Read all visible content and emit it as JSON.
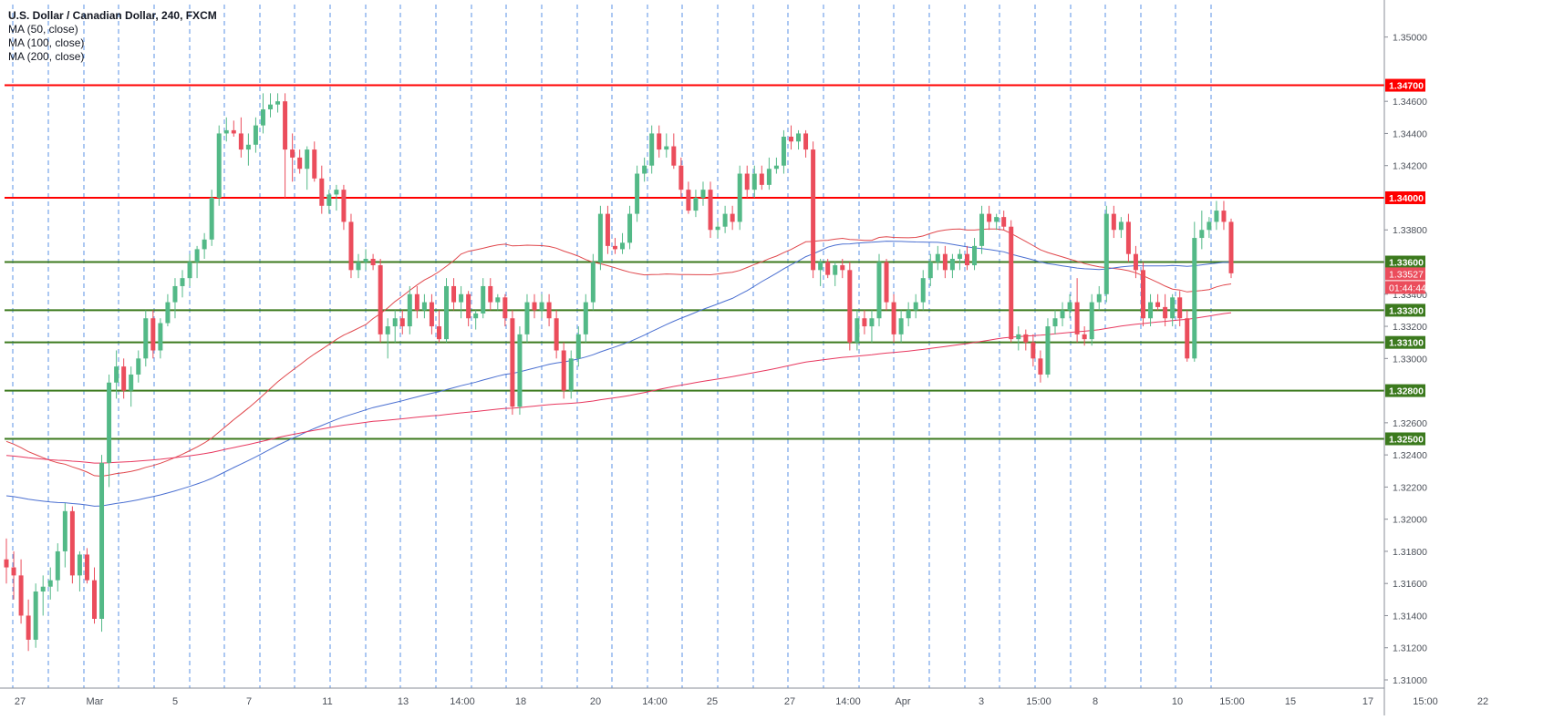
{
  "legend": {
    "title": "U.S. Dollar / Canadian Dollar, 240, FXCM",
    "ma50": "MA (50, close)",
    "ma100": "MA (100, close)",
    "ma200": "MA (200, close)"
  },
  "price_badge": {
    "last": "1.33527",
    "countdown": "01:44:44"
  },
  "colors": {
    "up": "#53b987",
    "down": "#eb4d5c",
    "ma50": "#e0474c",
    "ma100": "#4a6fd1",
    "ma200": "#e8385f",
    "resistance": "#ff0000",
    "support": "#3c7a1e",
    "session_line": "#3d7fe0"
  },
  "chart_data": {
    "type": "candlestick",
    "symbol": "U.S. Dollar / Canadian Dollar",
    "timeframe": "240",
    "source": "FXCM",
    "ylim": [
      1.31,
      1.351
    ],
    "y_ticks": [
      "1.35000",
      "1.34600",
      "1.34400",
      "1.34200",
      "1.33800",
      "1.33400",
      "1.33200",
      "1.33000",
      "1.32600",
      "1.32400",
      "1.32200",
      "1.32000",
      "1.31800",
      "1.31600",
      "1.31400",
      "1.31200",
      "1.31000"
    ],
    "x_ticks": [
      "27",
      "Mar",
      "5",
      "7",
      "11",
      "13",
      "14:00",
      "18",
      "20",
      "14:00",
      "25",
      "27",
      "14:00",
      "Apr",
      "3",
      "15:00",
      "8",
      "10",
      "15:00",
      "15",
      "17",
      "15:00",
      "22"
    ],
    "horizontal_levels": [
      {
        "value": 1.347,
        "label": "1.34700",
        "kind": "resistance"
      },
      {
        "value": 1.34,
        "label": "1.34000",
        "kind": "resistance"
      },
      {
        "value": 1.336,
        "label": "1.33600",
        "kind": "support"
      },
      {
        "value": 1.333,
        "label": "1.33300",
        "kind": "support"
      },
      {
        "value": 1.331,
        "label": "1.33100",
        "kind": "support"
      },
      {
        "value": 1.328,
        "label": "1.32800",
        "kind": "support"
      },
      {
        "value": 1.325,
        "label": "1.32500",
        "kind": "support"
      }
    ],
    "candles": [
      [
        1.3175,
        1.3188,
        1.316,
        1.317
      ],
      [
        1.317,
        1.318,
        1.315,
        1.3165
      ],
      [
        1.3165,
        1.3175,
        1.3135,
        1.314
      ],
      [
        1.314,
        1.315,
        1.3118,
        1.3125
      ],
      [
        1.3125,
        1.316,
        1.312,
        1.3155
      ],
      [
        1.3155,
        1.3165,
        1.314,
        1.3158
      ],
      [
        1.3158,
        1.317,
        1.315,
        1.3162
      ],
      [
        1.3162,
        1.3185,
        1.3155,
        1.318
      ],
      [
        1.318,
        1.321,
        1.317,
        1.3205
      ],
      [
        1.3205,
        1.3208,
        1.316,
        1.3165
      ],
      [
        1.3165,
        1.318,
        1.3155,
        1.3178
      ],
      [
        1.3178,
        1.3182,
        1.316,
        1.3162
      ],
      [
        1.3162,
        1.317,
        1.3135,
        1.3138
      ],
      [
        1.3138,
        1.324,
        1.313,
        1.3235
      ],
      [
        1.3235,
        1.329,
        1.322,
        1.3285
      ],
      [
        1.3285,
        1.3305,
        1.3275,
        1.3295
      ],
      [
        1.3295,
        1.33,
        1.3275,
        1.328
      ],
      [
        1.328,
        1.3295,
        1.327,
        1.329
      ],
      [
        1.329,
        1.3305,
        1.3285,
        1.33
      ],
      [
        1.33,
        1.333,
        1.3295,
        1.3325
      ],
      [
        1.3325,
        1.333,
        1.33,
        1.3305
      ],
      [
        1.3305,
        1.3325,
        1.33,
        1.3322
      ],
      [
        1.3322,
        1.334,
        1.332,
        1.3335
      ],
      [
        1.3335,
        1.335,
        1.3325,
        1.3345
      ],
      [
        1.3345,
        1.3355,
        1.3338,
        1.335
      ],
      [
        1.335,
        1.3365,
        1.3345,
        1.336
      ],
      [
        1.336,
        1.337,
        1.335,
        1.3368
      ],
      [
        1.3368,
        1.3378,
        1.3362,
        1.3374
      ],
      [
        1.3374,
        1.3405,
        1.337,
        1.34
      ],
      [
        1.34,
        1.3445,
        1.3395,
        1.344
      ],
      [
        1.344,
        1.345,
        1.3435,
        1.3442
      ],
      [
        1.3442,
        1.3448,
        1.3438,
        1.344
      ],
      [
        1.344,
        1.345,
        1.3425,
        1.343
      ],
      [
        1.343,
        1.344,
        1.342,
        1.3433
      ],
      [
        1.3433,
        1.345,
        1.3428,
        1.3445
      ],
      [
        1.3445,
        1.3465,
        1.344,
        1.3455
      ],
      [
        1.3455,
        1.3465,
        1.345,
        1.3458
      ],
      [
        1.3458,
        1.3465,
        1.3453,
        1.346
      ],
      [
        1.346,
        1.3465,
        1.34,
        1.343
      ],
      [
        1.343,
        1.344,
        1.341,
        1.3425
      ],
      [
        1.3425,
        1.343,
        1.3415,
        1.3418
      ],
      [
        1.3418,
        1.3432,
        1.3405,
        1.343
      ],
      [
        1.343,
        1.3435,
        1.341,
        1.3412
      ],
      [
        1.3412,
        1.342,
        1.339,
        1.3395
      ],
      [
        1.3395,
        1.3405,
        1.339,
        1.3402
      ],
      [
        1.3402,
        1.3408,
        1.3392,
        1.3405
      ],
      [
        1.3405,
        1.3408,
        1.338,
        1.3385
      ],
      [
        1.3385,
        1.339,
        1.335,
        1.3355
      ],
      [
        1.3355,
        1.3365,
        1.335,
        1.336
      ],
      [
        1.336,
        1.3368,
        1.3355,
        1.3362
      ],
      [
        1.3362,
        1.3365,
        1.3355,
        1.3358
      ],
      [
        1.3358,
        1.3362,
        1.331,
        1.3315
      ],
      [
        1.3315,
        1.3325,
        1.33,
        1.332
      ],
      [
        1.332,
        1.333,
        1.331,
        1.3325
      ],
      [
        1.3325,
        1.333,
        1.3315,
        1.332
      ],
      [
        1.332,
        1.3345,
        1.3315,
        1.334
      ],
      [
        1.334,
        1.3345,
        1.3325,
        1.333
      ],
      [
        1.333,
        1.334,
        1.3325,
        1.3335
      ],
      [
        1.3335,
        1.334,
        1.3315,
        1.332
      ],
      [
        1.332,
        1.333,
        1.331,
        1.3312
      ],
      [
        1.3312,
        1.335,
        1.331,
        1.3345
      ],
      [
        1.3345,
        1.335,
        1.333,
        1.3335
      ],
      [
        1.3335,
        1.3345,
        1.3325,
        1.334
      ],
      [
        1.334,
        1.3342,
        1.332,
        1.3325
      ],
      [
        1.3325,
        1.333,
        1.3318,
        1.3328
      ],
      [
        1.3328,
        1.335,
        1.3325,
        1.3345
      ],
      [
        1.3345,
        1.335,
        1.333,
        1.3335
      ],
      [
        1.3335,
        1.334,
        1.333,
        1.3338
      ],
      [
        1.3338,
        1.334,
        1.332,
        1.3325
      ],
      [
        1.3325,
        1.333,
        1.3265,
        1.327
      ],
      [
        1.327,
        1.332,
        1.3265,
        1.3315
      ],
      [
        1.3315,
        1.334,
        1.331,
        1.3335
      ],
      [
        1.3335,
        1.334,
        1.3325,
        1.333
      ],
      [
        1.333,
        1.334,
        1.3325,
        1.3335
      ],
      [
        1.3335,
        1.334,
        1.332,
        1.3325
      ],
      [
        1.3325,
        1.333,
        1.33,
        1.3305
      ],
      [
        1.3305,
        1.331,
        1.3275,
        1.328
      ],
      [
        1.328,
        1.3305,
        1.3275,
        1.33
      ],
      [
        1.33,
        1.332,
        1.3295,
        1.3315
      ],
      [
        1.3315,
        1.334,
        1.331,
        1.3335
      ],
      [
        1.3335,
        1.3365,
        1.333,
        1.336
      ],
      [
        1.336,
        1.3395,
        1.3355,
        1.339
      ],
      [
        1.339,
        1.3395,
        1.3365,
        1.337
      ],
      [
        1.337,
        1.3375,
        1.3365,
        1.3368
      ],
      [
        1.3368,
        1.3378,
        1.3365,
        1.3372
      ],
      [
        1.3372,
        1.3395,
        1.3368,
        1.339
      ],
      [
        1.339,
        1.342,
        1.3385,
        1.3415
      ],
      [
        1.3415,
        1.3425,
        1.341,
        1.342
      ],
      [
        1.342,
        1.3445,
        1.3415,
        1.344
      ],
      [
        1.344,
        1.3445,
        1.3425,
        1.343
      ],
      [
        1.343,
        1.344,
        1.3425,
        1.3432
      ],
      [
        1.3432,
        1.344,
        1.3418,
        1.342
      ],
      [
        1.342,
        1.3425,
        1.34,
        1.3405
      ],
      [
        1.3405,
        1.341,
        1.339,
        1.3392
      ],
      [
        1.3392,
        1.3405,
        1.3388,
        1.34
      ],
      [
        1.34,
        1.341,
        1.3395,
        1.3405
      ],
      [
        1.3405,
        1.341,
        1.3375,
        1.338
      ],
      [
        1.338,
        1.3385,
        1.3375,
        1.3382
      ],
      [
        1.3382,
        1.3395,
        1.3378,
        1.339
      ],
      [
        1.339,
        1.3395,
        1.338,
        1.3385
      ],
      [
        1.3385,
        1.342,
        1.338,
        1.3415
      ],
      [
        1.3415,
        1.342,
        1.34,
        1.3405
      ],
      [
        1.3405,
        1.342,
        1.34,
        1.3415
      ],
      [
        1.3415,
        1.342,
        1.3405,
        1.3408
      ],
      [
        1.3408,
        1.3425,
        1.3405,
        1.3418
      ],
      [
        1.3418,
        1.3425,
        1.3415,
        1.342
      ],
      [
        1.342,
        1.3442,
        1.3415,
        1.3438
      ],
      [
        1.3438,
        1.3445,
        1.343,
        1.3435
      ],
      [
        1.3435,
        1.3442,
        1.343,
        1.344
      ],
      [
        1.344,
        1.3442,
        1.3425,
        1.343
      ],
      [
        1.343,
        1.3435,
        1.335,
        1.3355
      ],
      [
        1.3355,
        1.3362,
        1.3345,
        1.336
      ],
      [
        1.336,
        1.3362,
        1.335,
        1.3352
      ],
      [
        1.3352,
        1.336,
        1.3345,
        1.3358
      ],
      [
        1.3358,
        1.3362,
        1.335,
        1.3355
      ],
      [
        1.3355,
        1.336,
        1.3305,
        1.331
      ],
      [
        1.331,
        1.333,
        1.3305,
        1.3325
      ],
      [
        1.3325,
        1.333,
        1.3315,
        1.332
      ],
      [
        1.332,
        1.333,
        1.331,
        1.3325
      ],
      [
        1.3325,
        1.3365,
        1.332,
        1.336
      ],
      [
        1.336,
        1.3362,
        1.333,
        1.3335
      ],
      [
        1.3335,
        1.334,
        1.331,
        1.3315
      ],
      [
        1.3315,
        1.333,
        1.331,
        1.3325
      ],
      [
        1.3325,
        1.3335,
        1.332,
        1.333
      ],
      [
        1.333,
        1.334,
        1.3325,
        1.3335
      ],
      [
        1.3335,
        1.3355,
        1.333,
        1.335
      ],
      [
        1.335,
        1.3365,
        1.3345,
        1.336
      ],
      [
        1.336,
        1.337,
        1.3355,
        1.3365
      ],
      [
        1.3365,
        1.337,
        1.335,
        1.3355
      ],
      [
        1.3355,
        1.3365,
        1.335,
        1.3362
      ],
      [
        1.3362,
        1.3368,
        1.3355,
        1.3365
      ],
      [
        1.3365,
        1.337,
        1.3355,
        1.3358
      ],
      [
        1.3358,
        1.3375,
        1.3355,
        1.337
      ],
      [
        1.337,
        1.3395,
        1.3365,
        1.339
      ],
      [
        1.339,
        1.3395,
        1.338,
        1.3385
      ],
      [
        1.3385,
        1.339,
        1.338,
        1.3388
      ],
      [
        1.3388,
        1.3392,
        1.338,
        1.3382
      ],
      [
        1.3382,
        1.3386,
        1.331,
        1.3312
      ],
      [
        1.3312,
        1.332,
        1.3305,
        1.3315
      ],
      [
        1.3315,
        1.3318,
        1.3305,
        1.331
      ],
      [
        1.331,
        1.3315,
        1.3295,
        1.33
      ],
      [
        1.33,
        1.3305,
        1.3285,
        1.329
      ],
      [
        1.329,
        1.3325,
        1.3288,
        1.332
      ],
      [
        1.332,
        1.333,
        1.3315,
        1.3325
      ],
      [
        1.3325,
        1.3335,
        1.332,
        1.333
      ],
      [
        1.333,
        1.334,
        1.3325,
        1.3335
      ],
      [
        1.3335,
        1.335,
        1.331,
        1.3315
      ],
      [
        1.3315,
        1.332,
        1.3308,
        1.3312
      ],
      [
        1.3312,
        1.334,
        1.3308,
        1.3335
      ],
      [
        1.3335,
        1.3345,
        1.333,
        1.334
      ],
      [
        1.334,
        1.3395,
        1.3335,
        1.339
      ],
      [
        1.339,
        1.3395,
        1.3375,
        1.338
      ],
      [
        1.338,
        1.3388,
        1.3375,
        1.3385
      ],
      [
        1.3385,
        1.339,
        1.336,
        1.3365
      ],
      [
        1.3365,
        1.337,
        1.335,
        1.3355
      ],
      [
        1.3355,
        1.336,
        1.332,
        1.3325
      ],
      [
        1.3325,
        1.334,
        1.332,
        1.3335
      ],
      [
        1.3335,
        1.334,
        1.333,
        1.3332
      ],
      [
        1.3332,
        1.334,
        1.332,
        1.3325
      ],
      [
        1.3325,
        1.334,
        1.332,
        1.3338
      ],
      [
        1.3338,
        1.3342,
        1.332,
        1.3325
      ],
      [
        1.3325,
        1.333,
        1.3298,
        1.33
      ],
      [
        1.33,
        1.3385,
        1.3298,
        1.3375
      ],
      [
        1.3375,
        1.3392,
        1.3368,
        1.338
      ],
      [
        1.338,
        1.3388,
        1.3375,
        1.3385
      ],
      [
        1.3385,
        1.3398,
        1.338,
        1.3392
      ],
      [
        1.3392,
        1.3398,
        1.338,
        1.3385
      ],
      [
        1.3385,
        1.3387,
        1.335,
        1.3353
      ]
    ],
    "moving_averages": [
      {
        "name": "MA (50, close)",
        "color": "#e0474c"
      },
      {
        "name": "MA (100, close)",
        "color": "#4a6fd1"
      },
      {
        "name": "MA (200, close)",
        "color": "#e8385f"
      }
    ]
  }
}
